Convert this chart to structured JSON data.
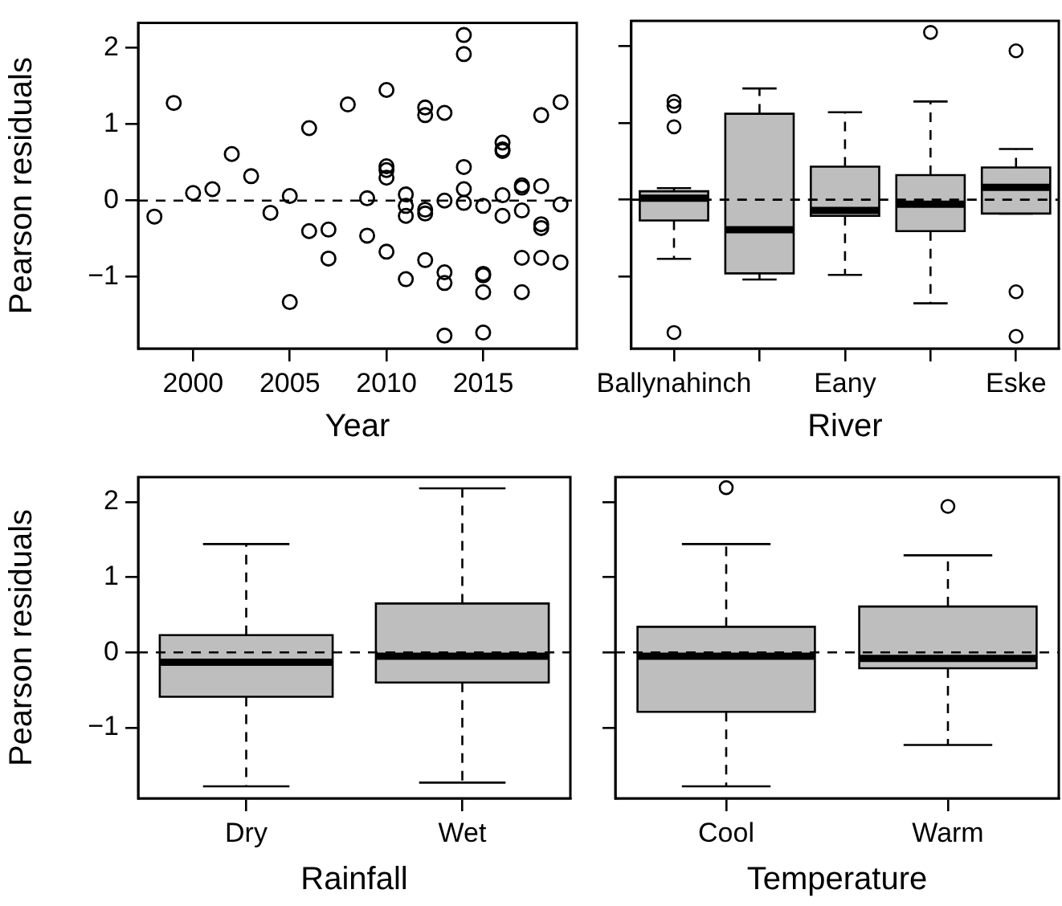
{
  "chart_data": [
    {
      "type": "scatter",
      "xlabel": "Year",
      "ylabel": "Pearson residuals",
      "color": "#000000",
      "marker": "circle",
      "x": [
        1998,
        1999,
        2000,
        2001,
        2002,
        2003,
        2004,
        2005,
        2005,
        2006,
        2006,
        2007,
        2007,
        2008,
        2009,
        2009,
        2010,
        2010,
        2010,
        2010,
        2010,
        2011,
        2011,
        2011,
        2011,
        2012,
        2012,
        2012,
        2012,
        2012,
        2013,
        2013,
        2013,
        2013,
        2013,
        2014,
        2014,
        2014,
        2014,
        2014,
        2015,
        2015,
        2015,
        2015,
        2015,
        2016,
        2016,
        2016,
        2016,
        2016,
        2017,
        2017,
        2017,
        2017,
        2017,
        2018,
        2018,
        2018,
        2018,
        2018,
        2019,
        2019,
        2019
      ],
      "values": [
        -0.21,
        1.28,
        0.1,
        0.15,
        0.61,
        0.32,
        -0.16,
        0.06,
        -1.33,
        0.95,
        -0.4,
        -0.38,
        -0.76,
        1.26,
        0.03,
        -0.46,
        1.45,
        0.45,
        0.4,
        0.3,
        -0.67,
        0.08,
        -0.07,
        -0.2,
        -1.03,
        1.22,
        1.12,
        -0.12,
        -0.17,
        -0.78,
        1.15,
        0.0,
        -0.94,
        -1.08,
        -1.77,
        2.17,
        1.92,
        0.44,
        0.15,
        -0.03,
        -0.07,
        -0.96,
        -0.98,
        -1.2,
        -1.73,
        0.76,
        0.67,
        0.65,
        0.07,
        -0.2,
        0.2,
        0.17,
        -0.13,
        -0.75,
        -1.2,
        1.12,
        0.19,
        -0.31,
        -0.36,
        -0.75,
        1.29,
        -0.05,
        -0.81
      ],
      "xlim": [
        1997.16,
        2019.84
      ],
      "xticks": [
        2000,
        2005,
        2010,
        2015
      ],
      "ylim": [
        -1.94,
        2.33
      ],
      "yticks": [
        {
          "value": -1,
          "label": "−1"
        },
        0,
        1,
        2
      ],
      "ref_lines": [
        {
          "axis": "y",
          "value": 0,
          "line_style": "dashed"
        }
      ]
    },
    {
      "type": "box",
      "xlabel": "River",
      "color": "#bebebe",
      "categories": [
        "Ballynahinch",
        null,
        "Eany",
        null,
        "Eske"
      ],
      "boxes": [
        {
          "low": -0.77,
          "q1": -0.27,
          "median": 0.02,
          "q3": 0.11,
          "high": 0.15,
          "outliers": [
            1.28,
            1.22,
            0.95,
            -1.73
          ]
        },
        {
          "low": -1.04,
          "q1": -0.96,
          "median": -0.39,
          "q3": 1.12,
          "high": 1.45
        },
        {
          "low": -0.98,
          "q1": -0.21,
          "median": -0.14,
          "q3": 0.43,
          "high": 1.14
        },
        {
          "low": -1.35,
          "q1": -0.41,
          "median": -0.06,
          "q3": 0.32,
          "high": 1.28,
          "outliers": [
            2.18
          ]
        },
        {
          "low": -0.18,
          "q1": -0.18,
          "median": 0.16,
          "q3": 0.42,
          "high": 0.66,
          "outliers": [
            1.94,
            -1.2,
            -1.78
          ]
        }
      ],
      "ylim": [
        -1.94,
        2.33
      ],
      "yticks": [
        -1,
        0,
        1,
        2
      ],
      "tick_labels": "x",
      "ref_lines": [
        {
          "axis": "y",
          "value": 0,
          "line_style": "dashed"
        }
      ]
    },
    {
      "type": "box",
      "xlabel": "Rainfall",
      "ylabel": "Pearson residuals",
      "color": "#bebebe",
      "categories": [
        "Dry",
        "Wet"
      ],
      "boxes": [
        {
          "low": -1.78,
          "q1": -0.59,
          "median": -0.13,
          "q3": 0.23,
          "high": 1.44
        },
        {
          "low": -1.73,
          "q1": -0.4,
          "median": -0.05,
          "q3": 0.65,
          "high": 2.18
        }
      ],
      "ylim": [
        -1.94,
        2.33
      ],
      "yticks": [
        {
          "value": -1,
          "label": "−1"
        },
        0,
        1,
        2
      ],
      "ref_lines": [
        {
          "axis": "y",
          "value": 0,
          "line_style": "dashed"
        }
      ]
    },
    {
      "type": "box",
      "xlabel": "Temperature",
      "color": "#bebebe",
      "categories": [
        "Cool",
        "Warm"
      ],
      "boxes": [
        {
          "low": -1.78,
          "q1": -0.79,
          "median": -0.05,
          "q3": 0.34,
          "high": 1.44,
          "outliers": [
            2.19
          ]
        },
        {
          "low": -1.23,
          "q1": -0.21,
          "median": -0.08,
          "q3": 0.61,
          "high": 1.29,
          "outliers": [
            1.94
          ]
        }
      ],
      "ylim": [
        -1.94,
        2.33
      ],
      "yticks": [
        -1,
        0,
        1,
        2
      ],
      "tick_labels": "x",
      "ref_lines": [
        {
          "axis": "y",
          "value": 0,
          "line_style": "dashed"
        }
      ]
    }
  ]
}
